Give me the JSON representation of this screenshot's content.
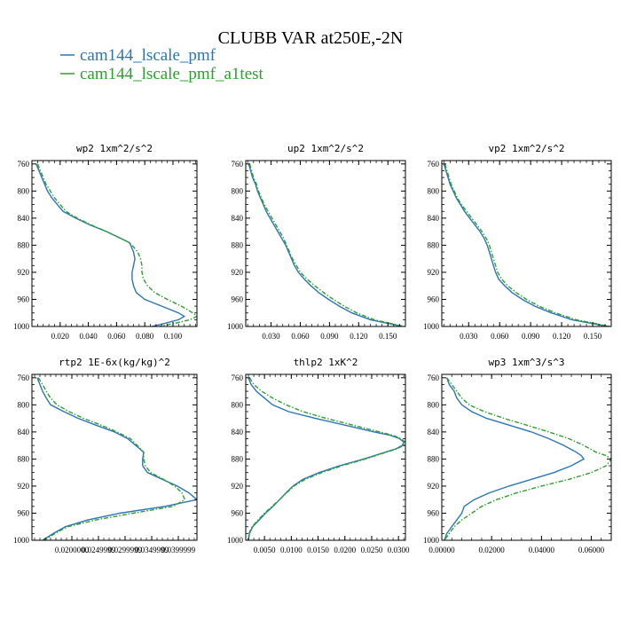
{
  "title": "CLUBB VAR at250E,-2N",
  "legend": [
    {
      "label": "cam144_lscale_pmf",
      "color": "#2a75b6",
      "dash": "solid"
    },
    {
      "label": "cam144_lscale_pmf_a1test",
      "color": "#2ca02c",
      "dash": "dashed"
    }
  ],
  "chart_data": [
    {
      "type": "line",
      "title": "wp2  1xm^2/s^2",
      "yticks": [
        760,
        800,
        840,
        880,
        920,
        960,
        1000
      ],
      "ylim": [
        1000,
        755
      ],
      "xlim": [
        0.0,
        0.117
      ],
      "xticks": [
        0.02,
        0.04,
        0.06,
        0.08,
        0.1
      ],
      "xtick_labels": [
        "0.020",
        "0.040",
        "0.060",
        "0.080",
        "0.100"
      ],
      "y": [
        760,
        770,
        780,
        790,
        800,
        810,
        820,
        830,
        840,
        850,
        860,
        870,
        876,
        880,
        890,
        900,
        910,
        920,
        930,
        940,
        950,
        960,
        970,
        980,
        985,
        990,
        995,
        1000
      ],
      "series": [
        {
          "name": "cam144_lscale_pmf",
          "values": [
            0.003,
            0.005,
            0.007,
            0.009,
            0.011,
            0.014,
            0.018,
            0.022,
            0.031,
            0.041,
            0.053,
            0.063,
            0.069,
            0.07,
            0.072,
            0.073,
            0.072,
            0.071,
            0.071,
            0.072,
            0.074,
            0.08,
            0.092,
            0.104,
            0.108,
            0.104,
            0.095,
            0.085
          ]
        },
        {
          "name": "cam144_lscale_pmf_a1test",
          "values": [
            0.004,
            0.006,
            0.008,
            0.01,
            0.013,
            0.016,
            0.02,
            0.024,
            0.032,
            0.042,
            0.053,
            0.063,
            0.069,
            0.071,
            0.075,
            0.077,
            0.078,
            0.078,
            0.079,
            0.082,
            0.087,
            0.096,
            0.106,
            0.114,
            0.117,
            0.112,
            0.102,
            0.09
          ]
        }
      ]
    },
    {
      "type": "line",
      "title": "up2  1xm^2/s^2",
      "yticks": [
        760,
        800,
        840,
        880,
        920,
        960,
        1000
      ],
      "ylim": [
        1000,
        755
      ],
      "xlim": [
        0.004,
        0.168
      ],
      "xticks": [
        0.03,
        0.06,
        0.09,
        0.12,
        0.15
      ],
      "xtick_labels": [
        "0.030",
        "0.060",
        "0.090",
        "0.120",
        "0.150"
      ],
      "y": [
        760,
        770,
        780,
        790,
        800,
        810,
        820,
        830,
        840,
        850,
        860,
        870,
        880,
        890,
        900,
        910,
        920,
        930,
        940,
        950,
        960,
        970,
        980,
        990,
        1000
      ],
      "series": [
        {
          "name": "cam144_lscale_pmf",
          "values": [
            0.007,
            0.009,
            0.011,
            0.014,
            0.016,
            0.019,
            0.022,
            0.025,
            0.029,
            0.033,
            0.037,
            0.041,
            0.045,
            0.048,
            0.051,
            0.054,
            0.058,
            0.064,
            0.071,
            0.079,
            0.089,
            0.1,
            0.113,
            0.132,
            0.165
          ]
        },
        {
          "name": "cam144_lscale_pmf_a1test",
          "values": [
            0.008,
            0.01,
            0.012,
            0.015,
            0.017,
            0.02,
            0.023,
            0.027,
            0.031,
            0.035,
            0.039,
            0.043,
            0.046,
            0.049,
            0.052,
            0.056,
            0.06,
            0.067,
            0.075,
            0.084,
            0.094,
            0.105,
            0.118,
            0.136,
            0.167
          ]
        }
      ]
    },
    {
      "type": "line",
      "title": "vp2  1xm^2/s^2",
      "yticks": [
        760,
        800,
        840,
        880,
        920,
        960,
        1000
      ],
      "ylim": [
        1000,
        755
      ],
      "xlim": [
        0.004,
        0.168
      ],
      "xticks": [
        0.03,
        0.06,
        0.09,
        0.12,
        0.15
      ],
      "xtick_labels": [
        "0.030",
        "0.060",
        "0.090",
        "0.120",
        "0.150"
      ],
      "y": [
        760,
        770,
        780,
        790,
        800,
        810,
        820,
        830,
        840,
        850,
        860,
        870,
        880,
        890,
        900,
        910,
        920,
        930,
        940,
        950,
        960,
        970,
        980,
        990,
        1000
      ],
      "series": [
        {
          "name": "cam144_lscale_pmf",
          "values": [
            0.006,
            0.008,
            0.01,
            0.012,
            0.015,
            0.018,
            0.022,
            0.026,
            0.031,
            0.036,
            0.041,
            0.045,
            0.048,
            0.05,
            0.052,
            0.054,
            0.056,
            0.059,
            0.065,
            0.072,
            0.082,
            0.094,
            0.11,
            0.13,
            0.165
          ]
        },
        {
          "name": "cam144_lscale_pmf_a1test",
          "values": [
            0.007,
            0.009,
            0.011,
            0.013,
            0.016,
            0.019,
            0.023,
            0.028,
            0.033,
            0.038,
            0.043,
            0.047,
            0.05,
            0.052,
            0.054,
            0.056,
            0.058,
            0.062,
            0.068,
            0.076,
            0.086,
            0.098,
            0.114,
            0.134,
            0.167
          ]
        }
      ]
    },
    {
      "type": "line",
      "title": "rtp2  1E-6x(kg/kg)^2",
      "yticks": [
        760,
        800,
        840,
        880,
        920,
        960,
        1000
      ],
      "ylim": [
        1000,
        755
      ],
      "xlim": [
        0.0125,
        0.0435
      ],
      "xticks": [
        0.02,
        0.025,
        0.03,
        0.035,
        0.04
      ],
      "xtick_labels": [
        "0.0200000",
        "0.0249999",
        "0.0299999",
        "0.0349999",
        "0.0399999"
      ],
      "y": [
        760,
        770,
        780,
        790,
        800,
        810,
        820,
        830,
        840,
        850,
        860,
        870,
        880,
        890,
        900,
        910,
        920,
        930,
        940,
        950,
        960,
        970,
        980,
        990,
        1000
      ],
      "series": [
        {
          "name": "cam144_lscale_pmf",
          "values": [
            0.0135,
            0.014,
            0.0145,
            0.0152,
            0.016,
            0.0185,
            0.0212,
            0.0245,
            0.028,
            0.0305,
            0.032,
            0.0335,
            0.0333,
            0.0333,
            0.0342,
            0.037,
            0.0398,
            0.042,
            0.0435,
            0.0375,
            0.029,
            0.023,
            0.0188,
            0.0165,
            0.0145
          ]
        },
        {
          "name": "cam144_lscale_pmf_a1test",
          "values": [
            0.0137,
            0.0145,
            0.0152,
            0.016,
            0.0172,
            0.0195,
            0.0222,
            0.0255,
            0.0285,
            0.031,
            0.0323,
            0.0335,
            0.0335,
            0.0338,
            0.0348,
            0.0372,
            0.0393,
            0.0407,
            0.0412,
            0.039,
            0.0315,
            0.0245,
            0.0192,
            0.0168,
            0.0148
          ]
        }
      ]
    },
    {
      "type": "line",
      "title": "thlp2  1xK^2",
      "yticks": [
        760,
        800,
        840,
        880,
        920,
        960,
        1000
      ],
      "ylim": [
        1000,
        755
      ],
      "xlim": [
        0.0015,
        0.0313
      ],
      "xticks": [
        0.005,
        0.01,
        0.015,
        0.02,
        0.025,
        0.03
      ],
      "xtick_labels": [
        "0.0050",
        "0.0100",
        "0.0150",
        "0.0200",
        "0.0250",
        "0.0300"
      ],
      "y": [
        760,
        770,
        780,
        790,
        800,
        810,
        820,
        830,
        840,
        845,
        850,
        855,
        860,
        865,
        870,
        880,
        890,
        900,
        910,
        920,
        930,
        940,
        950,
        960,
        970,
        980,
        990,
        1000
      ],
      "series": [
        {
          "name": "cam144_lscale_pmf",
          "values": [
            0.002,
            0.0025,
            0.0035,
            0.005,
            0.0065,
            0.0095,
            0.0145,
            0.02,
            0.0255,
            0.0285,
            0.0302,
            0.031,
            0.0307,
            0.0295,
            0.0275,
            0.0235,
            0.019,
            0.0152,
            0.0122,
            0.0103,
            0.009,
            0.0078,
            0.0066,
            0.0052,
            0.004,
            0.0028,
            0.0022,
            0.002
          ]
        },
        {
          "name": "cam144_lscale_pmf_a1test",
          "values": [
            0.0022,
            0.003,
            0.0045,
            0.0065,
            0.009,
            0.0122,
            0.0165,
            0.0215,
            0.0265,
            0.029,
            0.0305,
            0.0312,
            0.031,
            0.0297,
            0.0277,
            0.0238,
            0.0195,
            0.0157,
            0.0126,
            0.0105,
            0.0091,
            0.0078,
            0.0064,
            0.005,
            0.0038,
            0.0027,
            0.0021,
            0.0019
          ]
        }
      ]
    },
    {
      "type": "line",
      "title": "wp3  1xm^3/s^3",
      "yticks": [
        760,
        800,
        840,
        880,
        920,
        960,
        1000
      ],
      "ylim": [
        1000,
        755
      ],
      "xlim": [
        0.0,
        0.068
      ],
      "xticks": [
        0.0,
        0.02,
        0.04,
        0.06
      ],
      "xtick_labels": [
        "0.00000",
        "0.02000",
        "0.04000",
        "0.06000"
      ],
      "y": [
        760,
        770,
        780,
        790,
        800,
        810,
        820,
        830,
        840,
        850,
        860,
        870,
        875,
        880,
        890,
        900,
        910,
        920,
        930,
        940,
        950,
        960,
        970,
        980,
        990,
        1000
      ],
      "series": [
        {
          "name": "cam144_lscale_pmf",
          "values": [
            0.002,
            0.003,
            0.005,
            0.006,
            0.008,
            0.012,
            0.018,
            0.027,
            0.036,
            0.043,
            0.049,
            0.054,
            0.056,
            0.057,
            0.052,
            0.045,
            0.036,
            0.027,
            0.019,
            0.013,
            0.009,
            0.008,
            0.006,
            0.004,
            0.002,
            0.001
          ]
        },
        {
          "name": "cam144_lscale_pmf_a1test",
          "values": [
            0.002,
            0.004,
            0.006,
            0.008,
            0.011,
            0.017,
            0.025,
            0.034,
            0.043,
            0.051,
            0.057,
            0.062,
            0.066,
            0.068,
            0.066,
            0.06,
            0.051,
            0.04,
            0.03,
            0.022,
            0.016,
            0.012,
            0.008,
            0.005,
            0.003,
            0.001
          ]
        }
      ]
    }
  ]
}
